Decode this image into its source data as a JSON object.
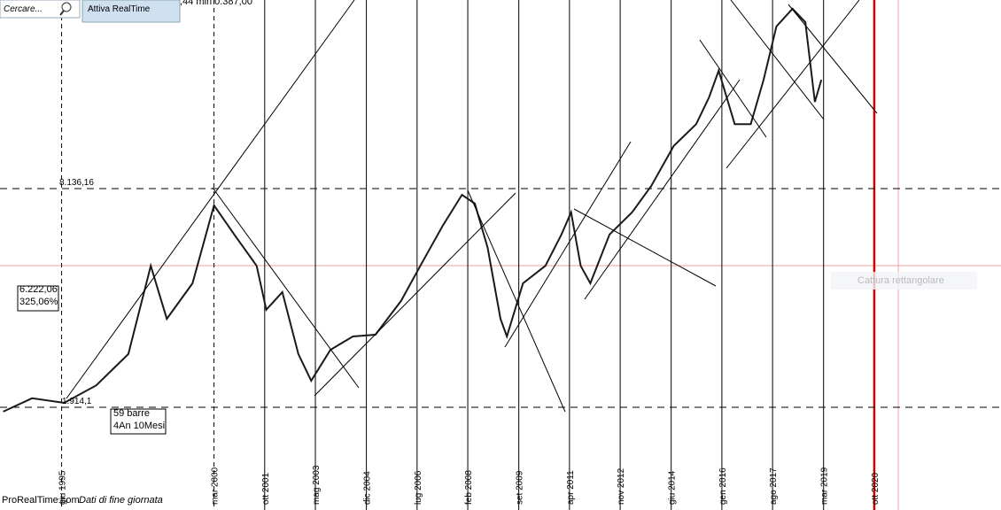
{
  "ui": {
    "search_placeholder": "Cercare...",
    "button": "Attiva RealTime",
    "quote": ",44 min 0.387,00",
    "brand": "ProRealTime.com",
    "note": "Dati di fine giornata",
    "tooltip": "Cattura rettangolare"
  },
  "chart_data": {
    "type": "line",
    "xlim": [
      1993.5,
      2024.7
    ],
    "ylim": [
      0,
      13500
    ],
    "x": [
      1993.6,
      1994.5,
      1995.5,
      1996.5,
      1997.5,
      1998.2,
      1998.7,
      1999.5,
      2000.17,
      2000.8,
      2001.5,
      2001.8,
      2002.3,
      2002.8,
      2003.2,
      2003.8,
      2004.5,
      2005.2,
      2006.0,
      2006.6,
      2007.3,
      2007.9,
      2008.3,
      2008.7,
      2009.1,
      2009.3,
      2009.8,
      2010.5,
      2011.0,
      2011.3,
      2011.6,
      2011.9,
      2012.5,
      2013.2,
      2013.8,
      2014.5,
      2015.2,
      2015.6,
      2015.9,
      2016.4,
      2016.9,
      2017.3,
      2017.7,
      2018.2,
      2018.6,
      2018.9,
      2019.1
    ],
    "series": [
      {
        "color": "#1a1a1a",
        "values": [
          1790,
          2170,
          2040,
          2540,
          3430,
          5940,
          4430,
          5440,
          7660,
          6830,
          5940,
          4690,
          5190,
          3430,
          2670,
          3550,
          3930,
          3980,
          4940,
          5940,
          7080,
          7960,
          7710,
          6450,
          4430,
          3930,
          5440,
          5940,
          6830,
          7460,
          5940,
          5440,
          6830,
          7460,
          8210,
          9350,
          9970,
          10730,
          11490,
          9970,
          9970,
          11230,
          12750,
          13250,
          12870,
          10600,
          11230
        ]
      }
    ],
    "xticks_dashed": [
      {
        "value": 1995.42,
        "label": "giu 1995"
      },
      {
        "value": 2000.17,
        "label": "mar 2000"
      }
    ],
    "xticks": [
      {
        "value": 2001.75,
        "label": "ott 2001"
      },
      {
        "value": 2003.33,
        "label": "mag 2003"
      },
      {
        "value": 2004.92,
        "label": "dic 2004"
      },
      {
        "value": 2006.5,
        "label": "lug 2006"
      },
      {
        "value": 2008.08,
        "label": "feb 2008"
      },
      {
        "value": 2009.67,
        "label": "set 2009"
      },
      {
        "value": 2011.25,
        "label": "apr 2011"
      },
      {
        "value": 2012.83,
        "label": "nov 2012"
      },
      {
        "value": 2014.42,
        "label": "giu 2014"
      },
      {
        "value": 2016.0,
        "label": "gen 2016"
      },
      {
        "value": 2017.58,
        "label": "ago 2017"
      },
      {
        "value": 2019.17,
        "label": "mar 2019"
      }
    ],
    "xticks_red": [
      {
        "value": 2020.75,
        "label": "ott 2020"
      }
    ],
    "levels": [
      {
        "value": 8136.16,
        "label": "8.136,16"
      },
      {
        "value": 1914.1,
        "label": "1.914,1"
      }
    ],
    "crosshair": {
      "x": 2021.5,
      "y": 5945
    },
    "annotations": [
      "6.222,06",
      "325,06%",
      "59 barre",
      "4An 10Mesi"
    ]
  }
}
